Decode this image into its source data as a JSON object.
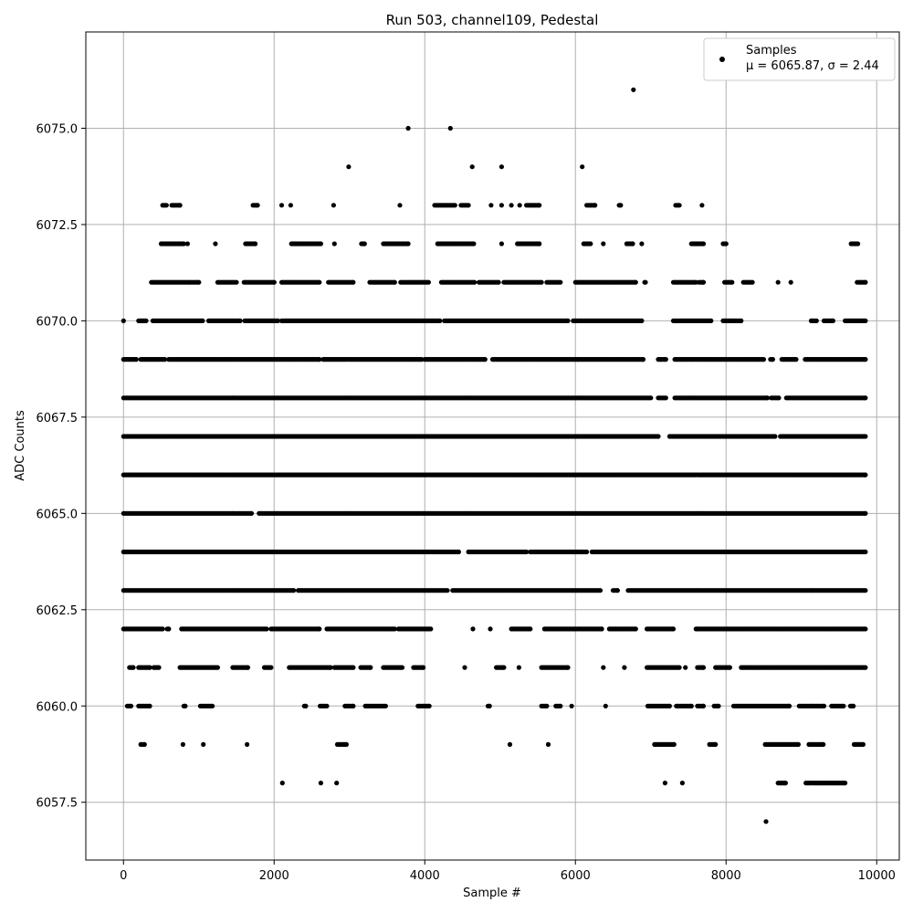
{
  "chart_data": {
    "type": "scatter",
    "title": "Run 503, channel109, Pedestal",
    "xlabel": "Sample #",
    "ylabel": "ADC Counts",
    "xlim": [
      -500,
      10300
    ],
    "ylim": [
      6056.0,
      6077.5
    ],
    "xticks": [
      0,
      2000,
      4000,
      6000,
      8000,
      10000
    ],
    "xtick_labels": [
      "0",
      "2000",
      "4000",
      "6000",
      "8000",
      "10000"
    ],
    "yticks": [
      6057.5,
      6060.0,
      6062.5,
      6065.0,
      6067.5,
      6070.0,
      6072.5,
      6075.0
    ],
    "ytick_labels": [
      "6057.5",
      "6060.0",
      "6062.5",
      "6065.0",
      "6067.5",
      "6070.0",
      "6072.5",
      "6075.0"
    ],
    "grid": true,
    "legend_position": "top-right",
    "marker_color": "#000000",
    "series": [
      {
        "name": "Samples",
        "stats_label": "μ = 6065.87, σ = 2.44",
        "mu": 6065.87,
        "sigma": 2.44,
        "x_range": [
          0,
          9850
        ],
        "note_points": "dense samples at integer ADC values, one per sample index",
        "bands": [
          {
            "y": 6057.0,
            "segments": [
              [
                8530,
                8530
              ]
            ]
          },
          {
            "y": 6058.0,
            "segments": [
              [
                2110,
                2110
              ],
              [
                2620,
                2620
              ],
              [
                2830,
                2830
              ],
              [
                7190,
                7190
              ],
              [
                7420,
                7420
              ],
              [
                8690,
                8790
              ],
              [
                9060,
                9580
              ]
            ]
          },
          {
            "y": 6059.0,
            "segments": [
              [
                230,
                280
              ],
              [
                790,
                790
              ],
              [
                1060,
                1060
              ],
              [
                1640,
                1640
              ],
              [
                2840,
                2960
              ],
              [
                5130,
                5130
              ],
              [
                5640,
                5640
              ],
              [
                7050,
                7310
              ],
              [
                7780,
                7860
              ],
              [
                8520,
                8960
              ],
              [
                9100,
                9290
              ],
              [
                9700,
                9820
              ]
            ]
          },
          {
            "y": 6060.0,
            "segments": [
              [
                50,
                100
              ],
              [
                200,
                350
              ],
              [
                800,
                820
              ],
              [
                1020,
                1180
              ],
              [
                2400,
                2420
              ],
              [
                2610,
                2700
              ],
              [
                2940,
                3050
              ],
              [
                3210,
                3480
              ],
              [
                3910,
                4060
              ],
              [
                4840,
                4860
              ],
              [
                5550,
                5620
              ],
              [
                5740,
                5800
              ],
              [
                5950,
                5950
              ],
              [
                6400,
                6400
              ],
              [
                6960,
                7250
              ],
              [
                7340,
                7540
              ],
              [
                7620,
                7700
              ],
              [
                7840,
                7900
              ],
              [
                8100,
                8840
              ],
              [
                8970,
                9300
              ],
              [
                9400,
                9560
              ],
              [
                9650,
                9690
              ]
            ]
          },
          {
            "y": 6061.0,
            "segments": [
              [
                80,
                130
              ],
              [
                200,
                350
              ],
              [
                400,
                470
              ],
              [
                750,
                1250
              ],
              [
                1450,
                1650
              ],
              [
                1870,
                1960
              ],
              [
                2200,
                2750
              ],
              [
                2800,
                3050
              ],
              [
                3150,
                3280
              ],
              [
                3450,
                3700
              ],
              [
                3850,
                3980
              ],
              [
                4530,
                4530
              ],
              [
                4950,
                5050
              ],
              [
                5250,
                5250
              ],
              [
                5550,
                5900
              ],
              [
                6370,
                6370
              ],
              [
                6650,
                6650
              ],
              [
                6950,
                7380
              ],
              [
                7460,
                7460
              ],
              [
                7620,
                7700
              ],
              [
                7860,
                8050
              ],
              [
                8200,
                9850
              ]
            ]
          },
          {
            "y": 6062.0,
            "segments": [
              [
                0,
                520
              ],
              [
                580,
                600
              ],
              [
                770,
                1900
              ],
              [
                1960,
                2600
              ],
              [
                2700,
                3600
              ],
              [
                3650,
                4080
              ],
              [
                4640,
                4640
              ],
              [
                4870,
                4870
              ],
              [
                5150,
                5400
              ],
              [
                5590,
                6350
              ],
              [
                6450,
                6800
              ],
              [
                6950,
                7300
              ],
              [
                7600,
                9850
              ]
            ]
          },
          {
            "y": 6063.0,
            "segments": [
              [
                0,
                2260
              ],
              [
                2320,
                4300
              ],
              [
                4370,
                6330
              ],
              [
                6500,
                6560
              ],
              [
                6700,
                9850
              ]
            ]
          },
          {
            "y": 6064.0,
            "segments": [
              [
                0,
                4450
              ],
              [
                4580,
                5350
              ],
              [
                5400,
                6150
              ],
              [
                6220,
                9850
              ]
            ]
          },
          {
            "y": 6065.0,
            "segments": [
              [
                0,
                1700
              ],
              [
                1800,
                9850
              ]
            ]
          },
          {
            "y": 6066.0,
            "segments": [
              [
                0,
                9850
              ]
            ]
          },
          {
            "y": 6067.0,
            "segments": [
              [
                0,
                7100
              ],
              [
                7250,
                8650
              ],
              [
                8720,
                9850
              ]
            ]
          },
          {
            "y": 6068.0,
            "segments": [
              [
                0,
                7000
              ],
              [
                7100,
                7200
              ],
              [
                7320,
                8550
              ],
              [
                8600,
                8700
              ],
              [
                8800,
                9850
              ]
            ]
          },
          {
            "y": 6069.0,
            "segments": [
              [
                0,
                170
              ],
              [
                230,
                550
              ],
              [
                600,
                2600
              ],
              [
                2650,
                3960
              ],
              [
                4000,
                4800
              ],
              [
                4900,
                6040
              ],
              [
                6050,
                6900
              ],
              [
                7100,
                7200
              ],
              [
                7320,
                8500
              ],
              [
                8590,
                8620
              ],
              [
                8740,
                8930
              ],
              [
                9050,
                9850
              ]
            ]
          },
          {
            "y": 6070.0,
            "segments": [
              [
                0,
                0
              ],
              [
                200,
                300
              ],
              [
                390,
                1050
              ],
              [
                1130,
                1550
              ],
              [
                1610,
                2050
              ],
              [
                2100,
                4200
              ],
              [
                4260,
                5900
              ],
              [
                5970,
                6880
              ],
              [
                7300,
                7800
              ],
              [
                7960,
                8200
              ],
              [
                9130,
                9200
              ],
              [
                9300,
                9420
              ],
              [
                9580,
                9850
              ]
            ]
          },
          {
            "y": 6071.0,
            "segments": [
              [
                370,
                880
              ],
              [
                900,
                1000
              ],
              [
                1250,
                1500
              ],
              [
                1600,
                2000
              ],
              [
                2100,
                2600
              ],
              [
                2720,
                3050
              ],
              [
                3270,
                3600
              ],
              [
                3680,
                4050
              ],
              [
                4220,
                4660
              ],
              [
                4720,
                4980
              ],
              [
                5050,
                5550
              ],
              [
                5620,
                5800
              ],
              [
                6000,
                6800
              ],
              [
                6920,
                6930
              ],
              [
                7300,
                7600
              ],
              [
                7640,
                7700
              ],
              [
                7980,
                8080
              ],
              [
                8230,
                8350
              ],
              [
                8690,
                8690
              ],
              [
                8860,
                8860
              ],
              [
                9740,
                9850
              ]
            ]
          },
          {
            "y": 6072.0,
            "segments": [
              [
                500,
                800
              ],
              [
                850,
                850
              ],
              [
                1220,
                1220
              ],
              [
                1620,
                1750
              ],
              [
                2230,
                2620
              ],
              [
                2800,
                2800
              ],
              [
                3160,
                3200
              ],
              [
                3450,
                3780
              ],
              [
                4170,
                4650
              ],
              [
                5020,
                5020
              ],
              [
                5230,
                5520
              ],
              [
                6110,
                6200
              ],
              [
                6370,
                6370
              ],
              [
                6680,
                6760
              ],
              [
                6880,
                6880
              ],
              [
                7540,
                7700
              ],
              [
                7960,
                8000
              ],
              [
                9660,
                9750
              ]
            ]
          },
          {
            "y": 6073.0,
            "segments": [
              [
                520,
                570
              ],
              [
                640,
                750
              ],
              [
                1720,
                1780
              ],
              [
                2100,
                2100
              ],
              [
                2220,
                2220
              ],
              [
                2790,
                2790
              ],
              [
                3670,
                3670
              ],
              [
                4130,
                4400
              ],
              [
                4480,
                4580
              ],
              [
                4880,
                4880
              ],
              [
                5020,
                5020
              ],
              [
                5150,
                5150
              ],
              [
                5260,
                5260
              ],
              [
                5350,
                5520
              ],
              [
                6150,
                6260
              ],
              [
                6580,
                6600
              ],
              [
                7330,
                7380
              ],
              [
                7680,
                7680
              ]
            ]
          },
          {
            "y": 6074.0,
            "segments": [
              [
                2990,
                2990
              ],
              [
                4630,
                4630
              ],
              [
                5020,
                5020
              ],
              [
                6090,
                6090
              ]
            ]
          },
          {
            "y": 6075.0,
            "segments": [
              [
                3780,
                3780
              ],
              [
                4340,
                4340
              ]
            ]
          },
          {
            "y": 6076.0,
            "segments": [
              [
                6770,
                6770
              ]
            ]
          }
        ]
      }
    ]
  }
}
